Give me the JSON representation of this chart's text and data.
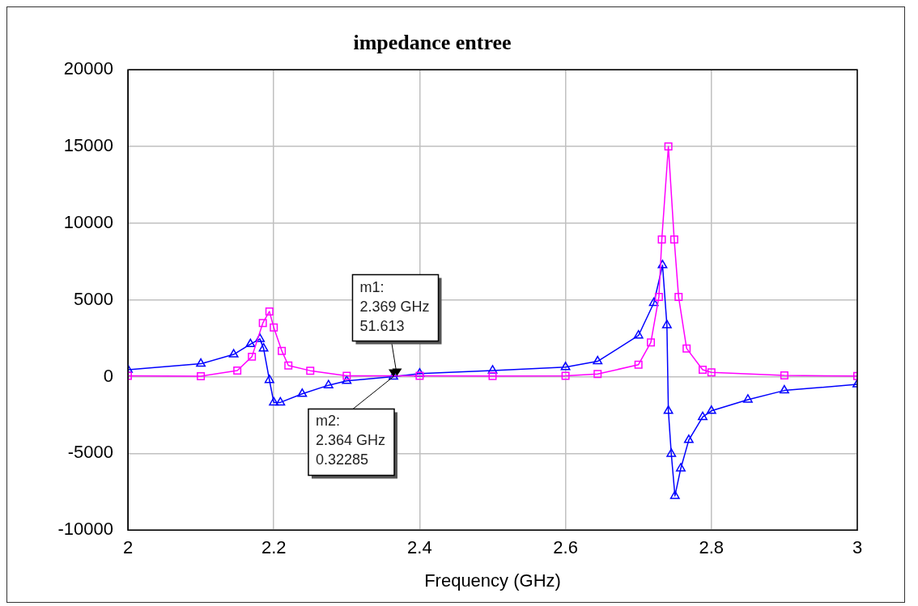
{
  "chart_data": {
    "type": "line",
    "title": "impedance entree",
    "xlabel": "Frequency (GHz)",
    "xlim": [
      2,
      3
    ],
    "xticks": [
      2,
      2.2,
      2.4,
      2.6,
      2.8,
      3
    ],
    "ylim": [
      -10000,
      20000
    ],
    "yticks": [
      -10000,
      -5000,
      0,
      5000,
      10000,
      15000,
      20000
    ],
    "grid": true,
    "legend": false,
    "line_style": "solid",
    "series": [
      {
        "color": "#ff00ff",
        "marker": "square",
        "x": [
          2.0,
          2.1,
          2.15,
          2.17,
          2.185,
          2.194,
          2.2,
          2.211,
          2.22,
          2.25,
          2.3,
          2.4,
          2.5,
          2.6,
          2.644,
          2.7,
          2.717,
          2.728,
          2.732,
          2.741,
          2.749,
          2.755,
          2.766,
          2.788,
          2.8,
          2.9,
          3.0
        ],
        "values": [
          50,
          30,
          400,
          1300,
          3500,
          4250,
          3200,
          1680,
          730,
          390,
          60,
          50,
          40,
          50,
          170,
          780,
          2230,
          5200,
          8940,
          15000,
          8940,
          5200,
          1840,
          450,
          280,
          80,
          40
        ]
      },
      {
        "color": "#0000ff",
        "marker": "triangle",
        "x": [
          2.0,
          2.1,
          2.145,
          2.168,
          2.181,
          2.186,
          2.194,
          2.2,
          2.209,
          2.239,
          2.275,
          2.3,
          2.364,
          2.4,
          2.5,
          2.6,
          2.644,
          2.7,
          2.721,
          2.733,
          2.739,
          2.741,
          2.745,
          2.75,
          2.758,
          2.769,
          2.788,
          2.8,
          2.85,
          2.9,
          3.0
        ],
        "values": [
          450,
          840,
          1450,
          2120,
          2460,
          1840,
          -220,
          -1680,
          -1680,
          -1120,
          -560,
          -280,
          0,
          200,
          400,
          620,
          1000,
          2680,
          4800,
          7260,
          3350,
          -2230,
          -5030,
          -7770,
          -5980,
          -4130,
          -2630,
          -2230,
          -1500,
          -900,
          -500
        ]
      }
    ],
    "annotations": [
      {
        "text": "m1:\n2.369 GHz\n51.613",
        "x": 2.369,
        "y": 51.613
      },
      {
        "text": "m2:\n2.364 GHz\n0.32285",
        "x": 2.364,
        "y": 0.32285
      }
    ]
  }
}
